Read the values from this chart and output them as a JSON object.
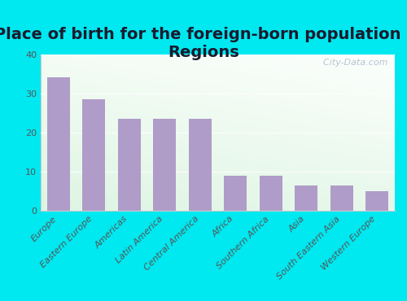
{
  "title": "Place of birth for the foreign-born population -\nRegions",
  "categories": [
    "Europe",
    "Eastern Europe",
    "Americas",
    "Latin America",
    "Central America",
    "Africa",
    "Southern Africa",
    "Asia",
    "South Eastern Asia",
    "Western Europe"
  ],
  "values": [
    34.0,
    28.5,
    23.5,
    23.5,
    23.5,
    9.0,
    9.0,
    6.5,
    6.5,
    5.0
  ],
  "bar_color": "#b09cc8",
  "background_outer": "#00e8f0",
  "ylim": [
    0,
    40
  ],
  "yticks": [
    0,
    10,
    20,
    30,
    40
  ],
  "title_fontsize": 14,
  "tick_fontsize": 8,
  "watermark": "  City-Data.com",
  "watermark_icon": "●"
}
